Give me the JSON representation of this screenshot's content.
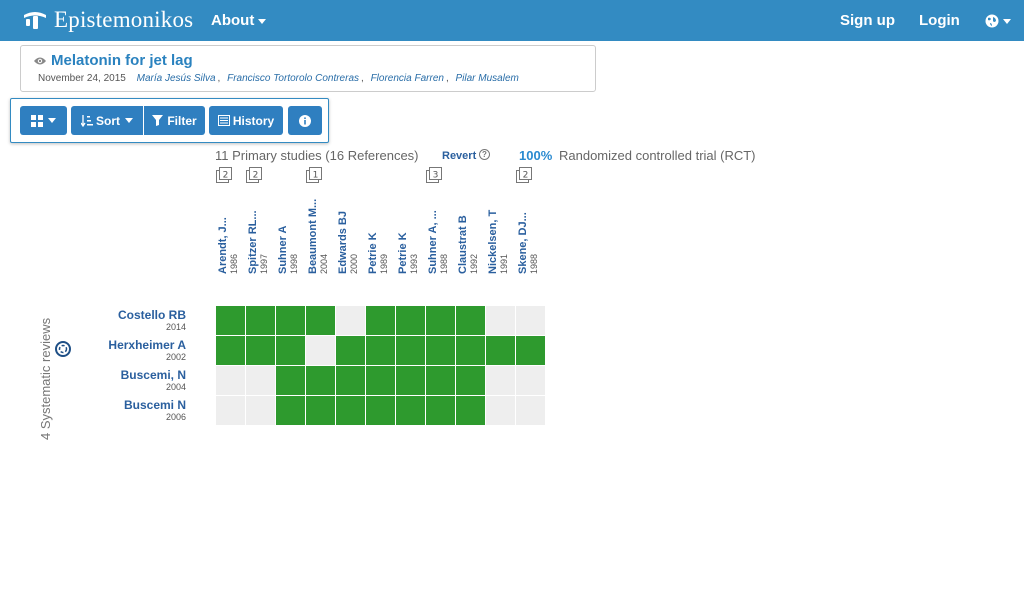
{
  "navbar": {
    "brand": "Epistemonikos",
    "about_label": "About",
    "signup_label": "Sign up",
    "login_label": "Login",
    "globe_icon": "globe-icon"
  },
  "document": {
    "title": "Melatonin for jet lag",
    "date": "November 24, 2015",
    "authors": [
      "María Jesús Silva",
      "Francisco Tortorolo Contreras",
      "Florencia Farren",
      "Pilar Musalem"
    ]
  },
  "toolbar": {
    "view_icon": "grid-icon",
    "sort_label": "Sort",
    "filter_label": "Filter",
    "history_label": "History",
    "info_icon": "info-icon"
  },
  "matrix": {
    "summary": "11 Primary studies (16 References)",
    "revert_label": "Revert",
    "rct_percent": "100%",
    "rct_label": "Randomized controlled trial (RCT)",
    "reviews_label": "4 Systematic reviews",
    "colors": {
      "included": "#2e9a2e",
      "not_included": "#eeeeee"
    },
    "studies": [
      {
        "name": "Arendt, J...",
        "year": "1986",
        "refs": "2"
      },
      {
        "name": "Spitzer RL...",
        "year": "1997",
        "refs": "2"
      },
      {
        "name": "Suhner A",
        "year": "1998",
        "refs": ""
      },
      {
        "name": "Beaumont M...",
        "year": "2004",
        "refs": "1"
      },
      {
        "name": "Edwards BJ",
        "year": "2000",
        "refs": ""
      },
      {
        "name": "Petrie K",
        "year": "1989",
        "refs": ""
      },
      {
        "name": "Petrie K",
        "year": "1993",
        "refs": ""
      },
      {
        "name": "Suhner A, ...",
        "year": "1988",
        "refs": "3"
      },
      {
        "name": "Claustrat B",
        "year": "1992",
        "refs": ""
      },
      {
        "name": "Nickelsen, T",
        "year": "1991",
        "refs": ""
      },
      {
        "name": "Skene, DJ...",
        "year": "1988",
        "refs": "2"
      }
    ],
    "reviews": [
      {
        "name": "Costello RB",
        "year": "2014",
        "cells": [
          1,
          1,
          1,
          1,
          0,
          1,
          1,
          1,
          1,
          0,
          0
        ]
      },
      {
        "name": "Herxheimer A",
        "year": "2002",
        "cells": [
          1,
          1,
          1,
          0,
          1,
          1,
          1,
          1,
          1,
          1,
          1
        ]
      },
      {
        "name": "Buscemi, N",
        "year": "2004",
        "cells": [
          0,
          0,
          1,
          1,
          1,
          1,
          1,
          1,
          1,
          0,
          0
        ]
      },
      {
        "name": "Buscemi N",
        "year": "2006",
        "cells": [
          0,
          0,
          1,
          1,
          1,
          1,
          1,
          1,
          1,
          0,
          0
        ]
      }
    ]
  }
}
